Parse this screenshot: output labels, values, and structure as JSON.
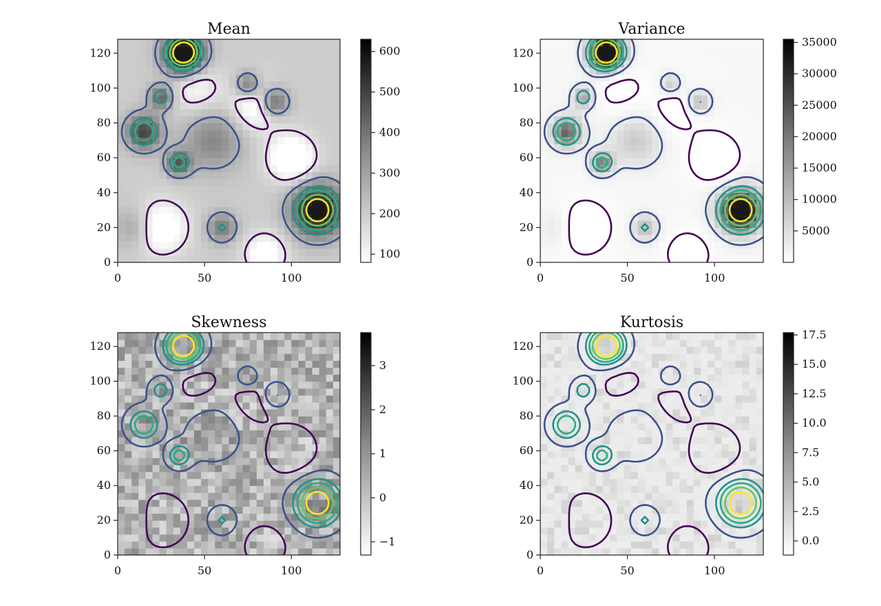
{
  "chart_data": [
    {
      "type": "heatmap",
      "title": "Mean",
      "xlim": [
        0,
        128
      ],
      "ylim": [
        0,
        128
      ],
      "xticks": [
        "0",
        "50",
        "100"
      ],
      "yticks": [
        "0",
        "20",
        "40",
        "60",
        "80",
        "100",
        "120"
      ],
      "colorbar": {
        "range": [
          80,
          630
        ],
        "ticks": [
          100,
          200,
          300,
          400,
          500,
          600
        ],
        "tick_labels": [
          "100",
          "200",
          "300",
          "400",
          "500",
          "600"
        ],
        "cmap": "gray_r"
      },
      "overlay": "contour",
      "contour_cmap": "viridis"
    },
    {
      "type": "heatmap",
      "title": "Variance",
      "xlim": [
        0,
        128
      ],
      "ylim": [
        0,
        128
      ],
      "xticks": [
        "0",
        "50",
        "100"
      ],
      "yticks": [
        "0",
        "20",
        "40",
        "60",
        "80",
        "100",
        "120"
      ],
      "colorbar": {
        "range": [
          0,
          35500
        ],
        "ticks": [
          5000,
          10000,
          15000,
          20000,
          25000,
          30000,
          35000
        ],
        "tick_labels": [
          "5000",
          "10000",
          "15000",
          "20000",
          "25000",
          "30000",
          "35000"
        ],
        "cmap": "gray_r"
      },
      "overlay": "contour",
      "contour_cmap": "viridis"
    },
    {
      "type": "heatmap",
      "title": "Skewness",
      "xlim": [
        0,
        128
      ],
      "ylim": [
        0,
        128
      ],
      "xticks": [
        "0",
        "50",
        "100"
      ],
      "yticks": [
        "0",
        "20",
        "40",
        "60",
        "80",
        "100",
        "120"
      ],
      "colorbar": {
        "range": [
          -1.3,
          3.75
        ],
        "ticks": [
          -1,
          0,
          1,
          2,
          3
        ],
        "tick_labels": [
          "−1",
          "0",
          "1",
          "2",
          "3"
        ],
        "cmap": "gray_r"
      },
      "overlay": "contour",
      "contour_cmap": "viridis"
    },
    {
      "type": "heatmap",
      "title": "Kurtosis",
      "xlim": [
        0,
        128
      ],
      "ylim": [
        0,
        128
      ],
      "xticks": [
        "0",
        "50",
        "100"
      ],
      "yticks": [
        "0",
        "20",
        "40",
        "60",
        "80",
        "100",
        "120"
      ],
      "colorbar": {
        "range": [
          -1.2,
          17.7
        ],
        "ticks": [
          0,
          2.5,
          5,
          7.5,
          10,
          12.5,
          15,
          17.5
        ],
        "tick_labels": [
          "0.0",
          "2.5",
          "5.0",
          "7.5",
          "10.0",
          "12.5",
          "15.0",
          "17.5"
        ],
        "cmap": "gray_r"
      },
      "overlay": "contour",
      "contour_cmap": "viridis"
    }
  ],
  "colors": {
    "contour_levels": [
      "#440154",
      "#3b528b",
      "#21918c",
      "#27ad81",
      "#5ec962",
      "#fde725"
    ]
  }
}
